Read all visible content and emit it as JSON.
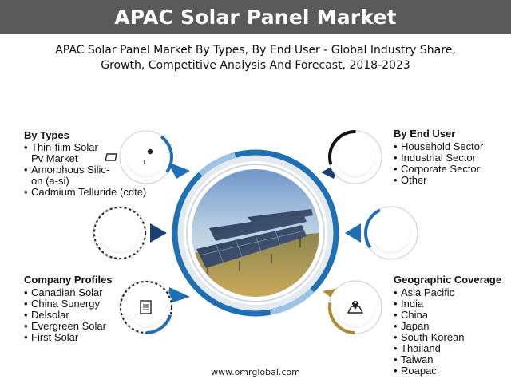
{
  "header": {
    "title": "APAC Solar Panel Market"
  },
  "subtitle": {
    "line1": "APAC Solar Panel Market By Types, By End User - Global Industry Share,",
    "line2": "Growth, Competitive Analysis And Forecast, 2018-2023"
  },
  "sections": {
    "types": {
      "title": "By Types",
      "items": [
        "Thin-film Solar-",
        "Pv Market",
        "Amorphous Silic-",
        "on (a-si)",
        "Cadmium Telluride (cdte)"
      ]
    },
    "end_user": {
      "title": "By End User",
      "items": [
        "Household Sector",
        "Industrial Sector",
        "Corporate Sector",
        "Other"
      ]
    },
    "company": {
      "title": "Company Profiles",
      "items": [
        "Canadian Solar",
        "China Sunergy",
        "Delsolar",
        "Evergreen Solar",
        "First Solar"
      ]
    },
    "geo": {
      "title": "Geographic Coverage",
      "items": [
        "Asia Pacific",
        "India",
        "China",
        "Japan",
        "South Korean",
        "Thailand",
        "Taiwan",
        "Roapac"
      ]
    }
  },
  "colors": {
    "header_bg": "#5a5a5a",
    "blue": "#1f6fb5",
    "dark_blue": "#1b3f73",
    "gold": "#b08a2c",
    "black_ring": "#111111"
  },
  "icons": {
    "types": "solar-panel-icon",
    "end_user": "user-icon",
    "company": "document-icon",
    "geo": "map-pin-icon"
  },
  "footer": {
    "url": "www.omrglobal.com"
  }
}
